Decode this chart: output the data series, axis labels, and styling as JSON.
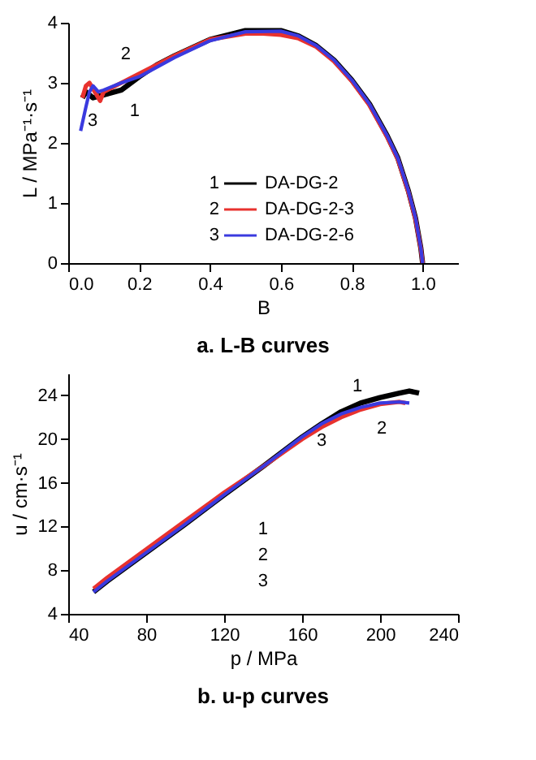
{
  "chart_data": [
    {
      "type": "line",
      "title": "a.  L-B curves",
      "xlabel": "B",
      "ylabel": "L / MPa⁻¹·s⁻¹",
      "xlim": [
        0,
        1.1
      ],
      "xticks": [
        {
          "value": 0,
          "label": "0.0"
        },
        0.2,
        0.4,
        0.6,
        0.8,
        {
          "value": 1,
          "label": "1.0"
        }
      ],
      "ylim": [
        0,
        4
      ],
      "yticks": [
        0,
        1,
        2,
        3,
        4
      ],
      "grid": false,
      "legend": "bottom",
      "line_style": "solid",
      "marker": "none",
      "annotations": [
        "1",
        "2",
        "3",
        {
          "text": "1",
          "x": 0.16,
          "y": 2.88
        },
        {
          "text": "2",
          "x": 0.19,
          "y": 3.15
        },
        {
          "text": "3",
          "x": 0.06,
          "y": 2.75
        }
      ],
      "series": [
        {
          "name": "DA-DG-2",
          "color": "#000000",
          "x": [
            0.04,
            0.05,
            0.07,
            0.1,
            0.15,
            0.2,
            0.25,
            0.3,
            0.4,
            0.5,
            0.6,
            0.65,
            0.7,
            0.75,
            0.8,
            0.85,
            0.9,
            0.93,
            0.96,
            0.98,
            0.995,
            1.0
          ],
          "values": [
            2.75,
            2.85,
            2.75,
            2.8,
            2.88,
            3.1,
            3.3,
            3.45,
            3.72,
            3.87,
            3.87,
            3.78,
            3.62,
            3.38,
            3.05,
            2.65,
            2.12,
            1.75,
            1.2,
            0.75,
            0.25,
            0
          ]
        },
        {
          "name": "DA-DG-2-3",
          "color": "#e8322e",
          "x": [
            0.04,
            0.05,
            0.06,
            0.075,
            0.09,
            0.1,
            0.15,
            0.2,
            0.3,
            0.4,
            0.5,
            0.55,
            0.6,
            0.65,
            0.7,
            0.75,
            0.8,
            0.85,
            0.9,
            0.93,
            0.96,
            0.98,
            0.995,
            1.0
          ],
          "values": [
            2.75,
            2.95,
            3.0,
            2.85,
            2.7,
            2.85,
            3.0,
            3.15,
            3.45,
            3.72,
            3.82,
            3.82,
            3.8,
            3.74,
            3.6,
            3.36,
            3.03,
            2.63,
            2.1,
            1.73,
            1.18,
            0.73,
            0.24,
            0
          ]
        },
        {
          "name": "DA-DG-2-6",
          "color": "#3a3adf",
          "x": [
            0.035,
            0.05,
            0.06,
            0.07,
            0.085,
            0.1,
            0.15,
            0.2,
            0.3,
            0.4,
            0.5,
            0.6,
            0.65,
            0.7,
            0.75,
            0.8,
            0.85,
            0.9,
            0.93,
            0.96,
            0.98,
            0.995,
            1.0
          ],
          "values": [
            2.2,
            2.6,
            2.85,
            2.95,
            2.85,
            2.88,
            3.0,
            3.1,
            3.42,
            3.7,
            3.85,
            3.86,
            3.78,
            3.62,
            3.38,
            3.05,
            2.65,
            2.12,
            1.75,
            1.2,
            0.75,
            0.25,
            0
          ]
        }
      ]
    },
    {
      "type": "line",
      "title": "b.  u-p curves",
      "xlabel": "p / MPa",
      "ylabel": "u / cm·s⁻¹",
      "xlim": [
        40,
        240
      ],
      "xticks": [
        40,
        80,
        120,
        160,
        200,
        240
      ],
      "ylim": [
        4,
        26
      ],
      "yticks": [
        4,
        8,
        12,
        16,
        20,
        24
      ],
      "grid": false,
      "legend": "bottom right",
      "line_style": "solid",
      "marker": "none",
      "annotations": [
        "1",
        "2",
        "3",
        {
          "text": "1",
          "x": 190,
          "y": 23.3
        },
        {
          "text": "2",
          "x": 195,
          "y": 22.9
        },
        {
          "text": "3",
          "x": 175,
          "y": 21.8
        }
      ],
      "series": [
        {
          "name": "DA-DG-2",
          "color": "#000000",
          "x": [
            53,
            60,
            80,
            100,
            120,
            140,
            160,
            170,
            180,
            190,
            200,
            210,
            215,
            220
          ],
          "values": [
            6,
            7.0,
            9.6,
            12.2,
            14.9,
            17.5,
            20.2,
            21.4,
            22.5,
            23.3,
            23.8,
            24.2,
            24.4,
            24.2
          ]
        },
        {
          "name": "DA-DG-2-3",
          "color": "#e8322e",
          "x": [
            53,
            60,
            80,
            100,
            120,
            140,
            160,
            170,
            180,
            190,
            200,
            210,
            213
          ],
          "values": [
            6.3,
            7.3,
            9.9,
            12.5,
            15.1,
            17.5,
            20.0,
            21.1,
            22.0,
            22.7,
            23.2,
            23.4,
            23.3
          ]
        },
        {
          "name": "DA-DG-2-6",
          "color": "#3a3adf",
          "x": [
            53,
            60,
            80,
            100,
            120,
            140,
            160,
            170,
            180,
            190,
            200,
            210,
            215
          ],
          "values": [
            6,
            7.0,
            9.6,
            12.2,
            14.9,
            17.5,
            20.2,
            21.4,
            22.3,
            22.9,
            23.3,
            23.4,
            23.3
          ]
        }
      ]
    }
  ]
}
